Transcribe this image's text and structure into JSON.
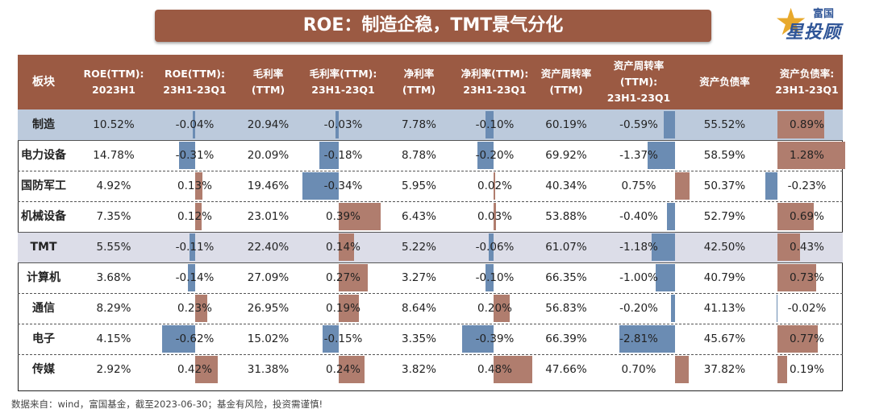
{
  "header": {
    "title": "ROE：制造企稳，TMT景气分化",
    "logo_top": "富国",
    "logo_main": "星投顾"
  },
  "footer": {
    "source": "数据来自：wind，富国基金，截至2023-06-30；基金有风险，投资需谨慎!"
  },
  "colors": {
    "header_bg": "#9b5a43",
    "bar_positive": "#b07d6e",
    "bar_negative": "#6b8cb3",
    "row_highlight_1": "#bccadc",
    "row_highlight_2": "#dcdde8"
  },
  "chart_data": {
    "type": "table",
    "title": "ROE：制造企稳，TMT景气分化",
    "columns": [
      {
        "label": "板块",
        "kind": "name"
      },
      {
        "label": "ROE(TTM):\n2023H1",
        "kind": "text"
      },
      {
        "label": "ROE(TTM):\n23H1-23Q1",
        "kind": "bar"
      },
      {
        "label": "毛利率\n(TTM)",
        "kind": "text"
      },
      {
        "label": "毛利率(TTM):\n23H1-23Q1",
        "kind": "bar"
      },
      {
        "label": "净利率\n(TTM)",
        "kind": "text"
      },
      {
        "label": "净利率(TTM):\n23H1-23Q1",
        "kind": "bar"
      },
      {
        "label": "资产周转率\n(TTM)",
        "kind": "text"
      },
      {
        "label": "资产周转率(TTM):\n23H1-23Q1",
        "kind": "bar"
      },
      {
        "label": "资产负债率",
        "kind": "text"
      },
      {
        "label": "资产负债率:\n23H1-23Q1",
        "kind": "bar"
      }
    ],
    "rows": [
      {
        "name": "制造",
        "highlight": 1,
        "values": [
          "10.52%",
          "-0.04%",
          "20.94%",
          "-0.03%",
          "7.78%",
          "-0.10%",
          "60.19%",
          "-0.59%",
          "55.52%",
          "0.89%"
        ]
      },
      {
        "name": "电力设备",
        "values": [
          "14.78%",
          "-0.31%",
          "20.09%",
          "-0.18%",
          "8.78%",
          "-0.20%",
          "69.92%",
          "-1.37%",
          "58.59%",
          "1.28%"
        ]
      },
      {
        "name": "国防军工",
        "values": [
          "4.92%",
          "0.13%",
          "19.46%",
          "-0.34%",
          "5.95%",
          "0.02%",
          "40.34%",
          "0.75%",
          "50.37%",
          "-0.23%"
        ]
      },
      {
        "name": "机械设备",
        "values": [
          "7.35%",
          "0.12%",
          "23.01%",
          "0.39%",
          "6.43%",
          "0.03%",
          "53.88%",
          "-0.40%",
          "52.79%",
          "0.69%"
        ]
      },
      {
        "name": "TMT",
        "highlight": 2,
        "values": [
          "5.55%",
          "-0.11%",
          "22.40%",
          "0.14%",
          "5.22%",
          "-0.06%",
          "61.07%",
          "-1.18%",
          "42.50%",
          "0.43%"
        ]
      },
      {
        "name": "计算机",
        "values": [
          "3.68%",
          "-0.14%",
          "27.09%",
          "0.27%",
          "3.27%",
          "-0.10%",
          "66.35%",
          "-1.00%",
          "40.79%",
          "0.73%"
        ]
      },
      {
        "name": "通信",
        "values": [
          "8.29%",
          "0.23%",
          "26.95%",
          "0.19%",
          "8.64%",
          "0.20%",
          "56.83%",
          "-0.20%",
          "41.13%",
          "-0.02%"
        ]
      },
      {
        "name": "电子",
        "values": [
          "4.15%",
          "-0.62%",
          "15.02%",
          "-0.15%",
          "3.35%",
          "-0.39%",
          "66.39%",
          "-2.81%",
          "45.67%",
          "0.77%"
        ]
      },
      {
        "name": "传媒",
        "values": [
          "2.92%",
          "0.42%",
          "31.38%",
          "0.24%",
          "3.82%",
          "0.48%",
          "47.66%",
          "0.70%",
          "37.82%",
          "0.19%"
        ]
      }
    ],
    "bar_scale": [
      0.7,
      0.4,
      0.5,
      2.9,
      1.3
    ]
  }
}
